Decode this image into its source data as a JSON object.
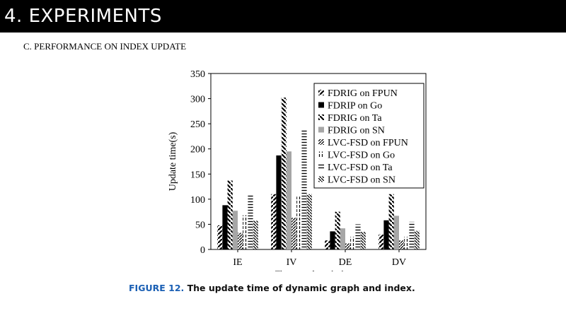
{
  "slide": {
    "title": "4. EXPERIMENTS",
    "section": "C. PERFORMANCE ON INDEX UPDATE"
  },
  "figure": {
    "label": "FIGURE 12.",
    "caption": "The update time of dynamic graph and index."
  },
  "chart_data": {
    "type": "bar",
    "title": "",
    "ylabel": "Update time(s)",
    "xlabel": "The type of graph change",
    "ylim": [
      0,
      350
    ],
    "yticks": [
      0,
      50,
      100,
      150,
      200,
      250,
      300,
      350
    ],
    "categories": [
      "IE",
      "IV",
      "DE",
      "DV"
    ],
    "legend_position": "top-right",
    "series": [
      {
        "name": "FDRIG on FPUN",
        "pattern": "slash",
        "values": [
          48,
          110,
          18,
          30
        ]
      },
      {
        "name": "FDRIP on Go",
        "pattern": "solid-black",
        "values": [
          88,
          187,
          36,
          58
        ]
      },
      {
        "name": "FDRIG on Ta",
        "pattern": "backslash",
        "values": [
          137,
          302,
          75,
          110
        ]
      },
      {
        "name": "FDRIG on SN",
        "pattern": "solid-gray",
        "values": [
          77,
          195,
          42,
          67
        ]
      },
      {
        "name": "LVC-FSD on FPUN",
        "pattern": "dense-slash",
        "values": [
          33,
          63,
          12,
          18
        ]
      },
      {
        "name": "LVC-FSD on Go",
        "pattern": "vertical-dash",
        "values": [
          68,
          105,
          25,
          25
        ]
      },
      {
        "name": "LVC-FSD on Ta",
        "pattern": "horizontal",
        "values": [
          110,
          238,
          50,
          55
        ]
      },
      {
        "name": "LVC-FSD on SN",
        "pattern": "dense-backslash",
        "values": [
          57,
          110,
          35,
          37
        ]
      }
    ]
  }
}
